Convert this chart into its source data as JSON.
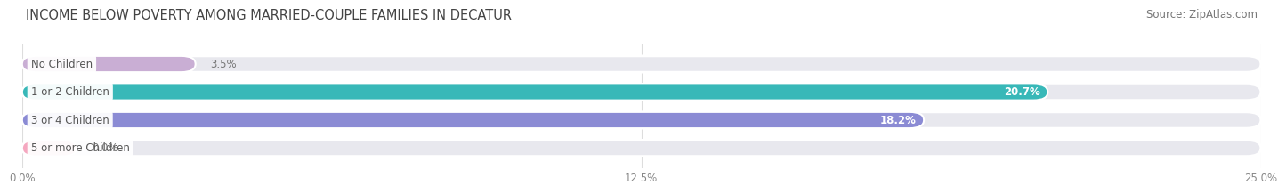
{
  "title": "INCOME BELOW POVERTY AMONG MARRIED-COUPLE FAMILIES IN DECATUR",
  "source": "Source: ZipAtlas.com",
  "categories": [
    "No Children",
    "1 or 2 Children",
    "3 or 4 Children",
    "5 or more Children"
  ],
  "values": [
    3.5,
    20.7,
    18.2,
    0.0
  ],
  "bar_colors": [
    "#c9aed4",
    "#38b8b8",
    "#8b8bd4",
    "#f5a8c0"
  ],
  "xlim": [
    0,
    25.0
  ],
  "xticks": [
    0.0,
    12.5,
    25.0
  ],
  "xtick_labels": [
    "0.0%",
    "12.5%",
    "25.0%"
  ],
  "bar_height": 0.58,
  "title_fontsize": 10.5,
  "source_fontsize": 8.5,
  "label_fontsize": 8.5,
  "value_fontsize": 8.5,
  "background_color": "#ffffff",
  "bar_bg_color": "#e8e8ee",
  "label_bg_color": "#ffffff",
  "grid_color": "#ffffff",
  "value_color_inside": "#ffffff",
  "value_color_outside": "#777777",
  "label_text_color": "#555555",
  "title_color": "#444444",
  "source_color": "#777777",
  "tick_color": "#888888"
}
